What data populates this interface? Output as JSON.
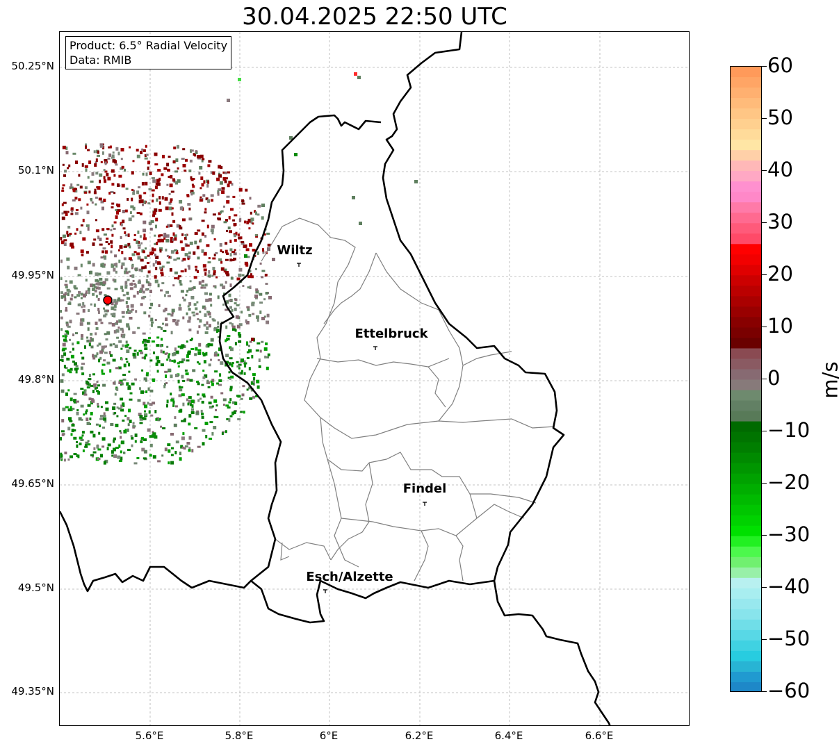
{
  "title": "30.04.2025 22:50 UTC",
  "info": {
    "product": "Product: 6.5° Radial Velocity",
    "data": "Data: RMIB"
  },
  "lat_labels": [
    "50.25°N",
    "50.1°N",
    "49.95°N",
    "49.8°N",
    "49.65°N",
    "49.5°N",
    "49.35°N"
  ],
  "lon_labels": [
    "5.6°E",
    "5.8°E",
    "6°E",
    "6.2°E",
    "6.4°E",
    "6.6°E"
  ],
  "cities": [
    {
      "name": "Wiltz",
      "lon": 5.933,
      "lat": 49.968
    },
    {
      "name": "Ettelbruck",
      "lon": 6.103,
      "lat": 49.848
    },
    {
      "name": "Findel",
      "lon": 6.211,
      "lat": 49.625
    },
    {
      "name": "Esch/Alzette",
      "lon": 5.988,
      "lat": 49.498
    }
  ],
  "radar_site": {
    "lon": 5.505,
    "lat": 49.914,
    "color": "#ff0000"
  },
  "colorbar": {
    "unit": "m/s",
    "ticks": [
      "60",
      "50",
      "40",
      "30",
      "20",
      "10",
      "0",
      "−10",
      "−20",
      "−30",
      "−40",
      "−50",
      "−60"
    ],
    "min": -60,
    "max": 60
  },
  "colors": {
    "approach_green": "#0a8a0a",
    "recede_red": "#8b0000",
    "near_zero": "#6b8a6b",
    "border": "#000000",
    "cantons": "#808080"
  }
}
